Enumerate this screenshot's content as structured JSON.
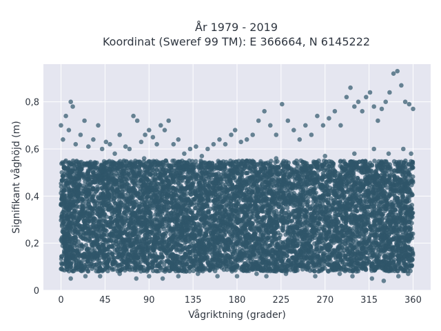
{
  "chart_data": {
    "type": "scatter",
    "title": "År 1979 - 2019",
    "subtitle": "Koordinat (Sweref 99 TM): E 366664, N 6145222",
    "xlabel": "Vågriktning (grader)",
    "ylabel": "Signifikant våghöjd (m)",
    "xlim": [
      -18,
      378
    ],
    "ylim": [
      0,
      0.96
    ],
    "xticks": [
      0,
      45,
      90,
      135,
      180,
      225,
      270,
      315,
      360
    ],
    "xtick_labels": [
      "0",
      "45",
      "90",
      "135",
      "180",
      "225",
      "270",
      "315",
      "360"
    ],
    "yticks": [
      0,
      0.2,
      0.4,
      0.6,
      0.8
    ],
    "ytick_labels": [
      "0",
      "0,2",
      "0,4",
      "0,6",
      "0,8"
    ],
    "grid": true,
    "marker_color": "#2f5569",
    "background_color": "#e5e6f0",
    "series": [
      {
        "points_summary": "Dense cloud spanning x 0–360 with y mostly 0.08–0.55; upper outliers reach ~0.93 near x 345.",
        "x": [
          0,
          2,
          5,
          8,
          10,
          12,
          15,
          20,
          24,
          28,
          33,
          38,
          42,
          46,
          50,
          55,
          60,
          66,
          70,
          74,
          78,
          82,
          86,
          90,
          94,
          98,
          102,
          106,
          110,
          115,
          120,
          126,
          132,
          138,
          144,
          150,
          156,
          162,
          168,
          174,
          178,
          184,
          190,
          196,
          202,
          208,
          214,
          220,
          226,
          232,
          238,
          244,
          250,
          256,
          262,
          268,
          274,
          280,
          286,
          292,
          296,
          300,
          304,
          308,
          312,
          316,
          320,
          324,
          328,
          332,
          336,
          340,
          344,
          348,
          352,
          356,
          360,
          10,
          25,
          40,
          60,
          77,
          90,
          104,
          120,
          140,
          160,
          180,
          200,
          210,
          230,
          260,
          285,
          298,
          318,
          330,
          345,
          355,
          5,
          30,
          55,
          85,
          110,
          150,
          190,
          220,
          250,
          270,
          300,
          320,
          335,
          350,
          358
        ],
        "y": [
          0.7,
          0.64,
          0.74,
          0.68,
          0.8,
          0.78,
          0.62,
          0.66,
          0.72,
          0.61,
          0.64,
          0.7,
          0.6,
          0.63,
          0.62,
          0.58,
          0.66,
          0.61,
          0.6,
          0.74,
          0.72,
          0.63,
          0.66,
          0.68,
          0.65,
          0.62,
          0.7,
          0.68,
          0.72,
          0.62,
          0.64,
          0.58,
          0.6,
          0.61,
          0.57,
          0.6,
          0.62,
          0.64,
          0.62,
          0.66,
          0.68,
          0.63,
          0.64,
          0.66,
          0.72,
          0.76,
          0.7,
          0.66,
          0.79,
          0.72,
          0.68,
          0.64,
          0.7,
          0.66,
          0.74,
          0.7,
          0.73,
          0.76,
          0.7,
          0.82,
          0.86,
          0.78,
          0.8,
          0.76,
          0.82,
          0.84,
          0.78,
          0.72,
          0.77,
          0.8,
          0.84,
          0.92,
          0.93,
          0.87,
          0.8,
          0.79,
          0.77,
          0.05,
          0.06,
          0.06,
          0.07,
          0.05,
          0.06,
          0.05,
          0.06,
          0.07,
          0.06,
          0.06,
          0.07,
          0.06,
          0.07,
          0.06,
          0.07,
          0.06,
          0.05,
          0.04,
          0.06,
          0.07,
          0.55,
          0.52,
          0.54,
          0.56,
          0.53,
          0.52,
          0.55,
          0.56,
          0.54,
          0.57,
          0.58,
          0.6,
          0.58,
          0.6,
          0.58
        ]
      }
    ]
  }
}
